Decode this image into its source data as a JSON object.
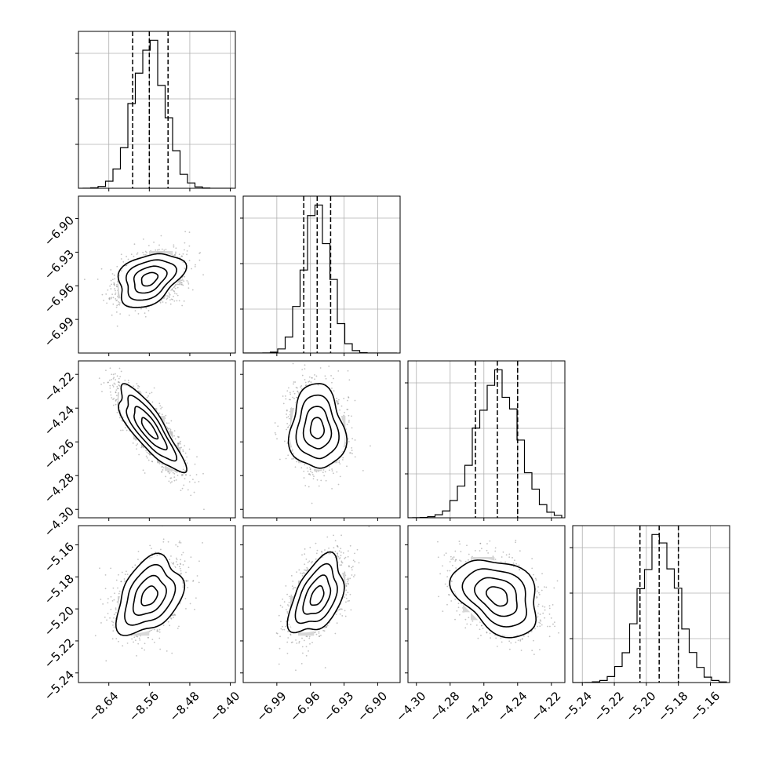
{
  "chart_data": {
    "type": "corner",
    "n_params": 4,
    "params": [
      {
        "index": 0,
        "median": -8.56,
        "q16": -8.593,
        "q84": -8.523,
        "sigma": 0.032,
        "range": [
          -8.7,
          -8.39
        ],
        "ticks": [
          -8.64,
          -8.56,
          -8.48,
          -8.4
        ],
        "tick_labels": [
          "−8.64",
          "−8.56",
          "−8.48",
          "−8.40"
        ]
      },
      {
        "index": 1,
        "median": -6.954,
        "q16": -6.966,
        "q84": -6.942,
        "sigma": 0.012,
        "range": [
          -7.02,
          -6.88
        ],
        "ticks": [
          -6.99,
          -6.96,
          -6.93,
          -6.9
        ],
        "tick_labels": [
          "−6.99",
          "−6.96",
          "−6.93",
          "−6.90"
        ]
      },
      {
        "index": 2,
        "median": -4.252,
        "q16": -4.265,
        "q84": -4.24,
        "sigma": 0.0125,
        "range": [
          -4.305,
          -4.212
        ],
        "ticks": [
          -4.3,
          -4.28,
          -4.26,
          -4.24,
          -4.22
        ],
        "tick_labels": [
          "−4.30",
          "−4.28",
          "−4.26",
          "−4.24",
          "−4.22"
        ]
      },
      {
        "index": 3,
        "median": -5.192,
        "q16": -5.204,
        "q84": -5.18,
        "sigma": 0.012,
        "range": [
          -5.246,
          -5.148
        ],
        "ticks": [
          -5.24,
          -5.22,
          -5.2,
          -5.18,
          -5.16
        ],
        "tick_labels": [
          "−5.24",
          "−5.22",
          "−5.20",
          "−5.18",
          "−5.16"
        ]
      }
    ],
    "correlations": [
      {
        "pair": [
          0,
          1
        ],
        "rho": 0.35
      },
      {
        "pair": [
          0,
          2
        ],
        "rho": -0.82
      },
      {
        "pair": [
          1,
          2
        ],
        "rho": -0.05
      },
      {
        "pair": [
          0,
          3
        ],
        "rho": 0.35
      },
      {
        "pair": [
          1,
          3
        ],
        "rho": 0.45
      },
      {
        "pair": [
          2,
          3
        ],
        "rho": -0.35
      }
    ],
    "grid": true,
    "colors": {
      "line": "#000000",
      "scatter": "#777777",
      "grid": "#b0b0b0"
    }
  }
}
